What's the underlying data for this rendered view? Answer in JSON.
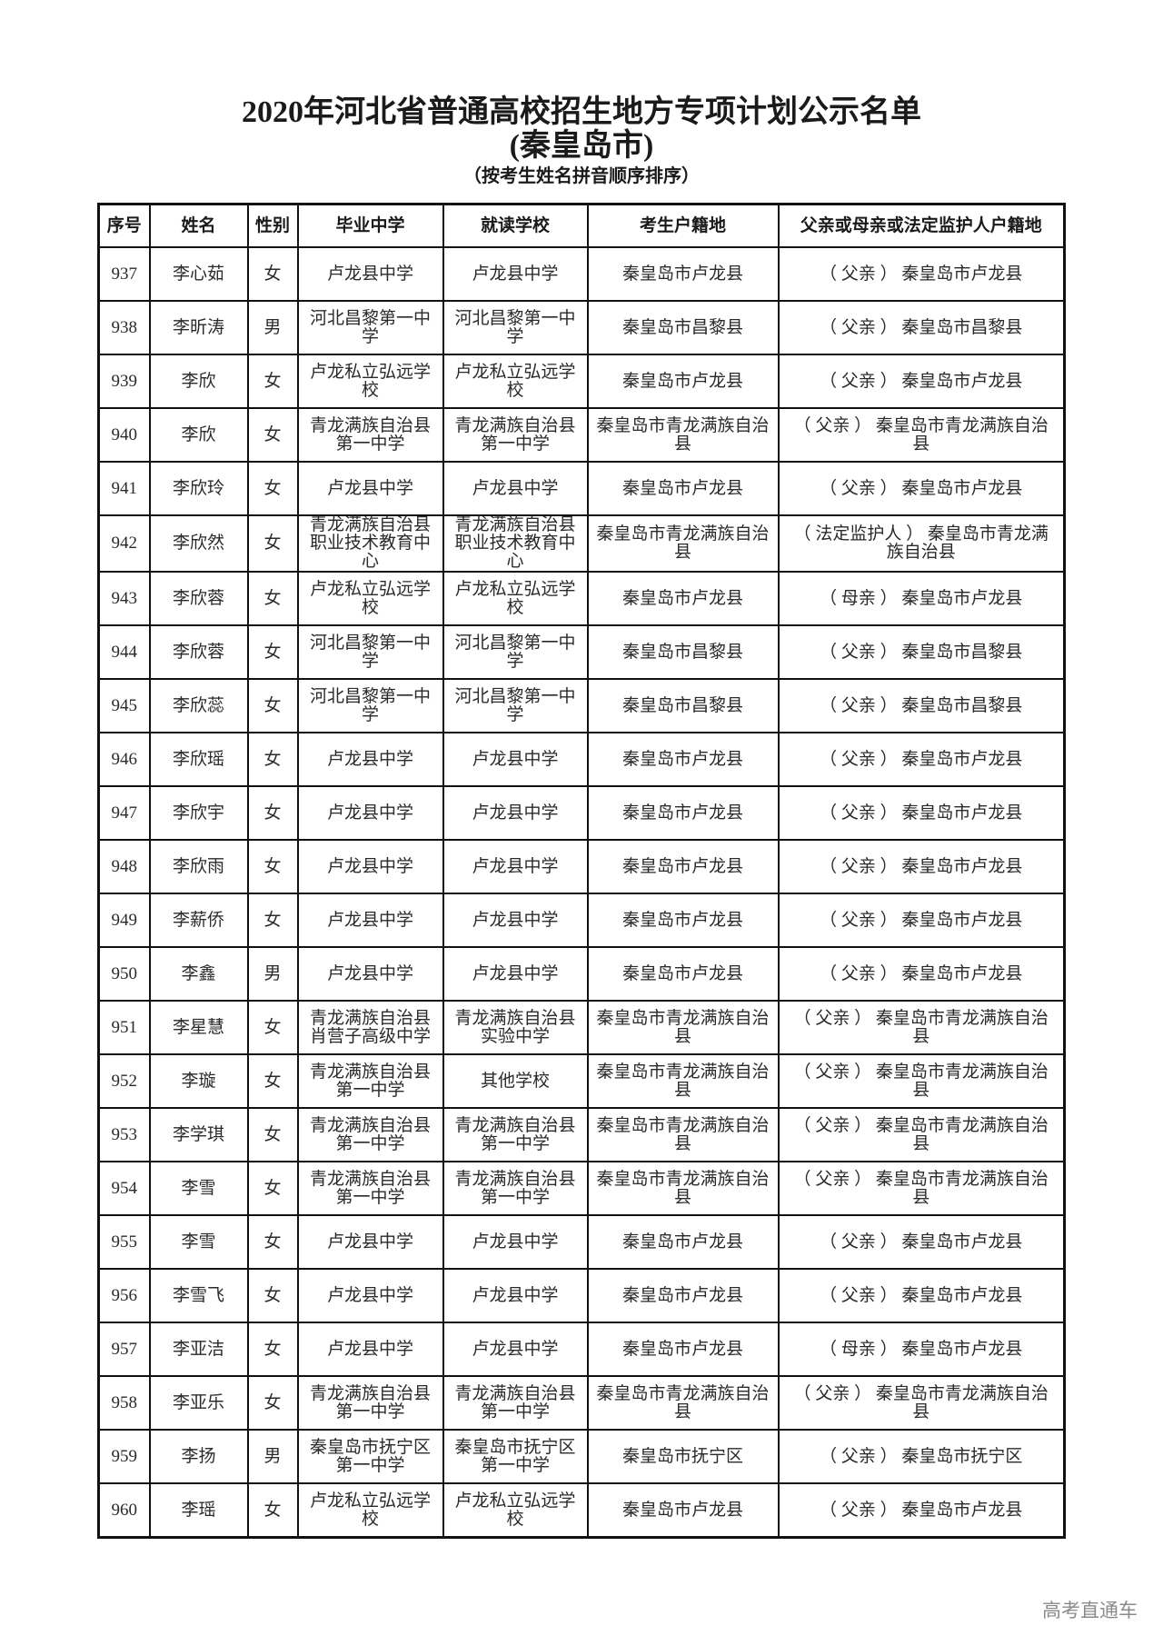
{
  "title": {
    "line1": "2020年河北省普通高校招生地方专项计划公示名单",
    "line2": "(秦皇岛市)",
    "line3": "（按考生姓名拼音顺序排序）"
  },
  "table": {
    "headers": [
      "序号",
      "姓名",
      "性别",
      "毕业中学",
      "就读学校",
      "考生户籍地",
      "父亲或母亲或法定监护人户籍地"
    ],
    "rows": [
      [
        "937",
        "李心茹",
        "女",
        "卢龙县中学",
        "卢龙县中学",
        "秦皇岛市卢龙县",
        "（ 父亲 ） 秦皇岛市卢龙县"
      ],
      [
        "938",
        "李昕涛",
        "男",
        "河北昌黎第一中学",
        "河北昌黎第一中学",
        "秦皇岛市昌黎县",
        "（ 父亲 ） 秦皇岛市昌黎县"
      ],
      [
        "939",
        "李欣",
        "女",
        "卢龙私立弘远学校",
        "卢龙私立弘远学校",
        "秦皇岛市卢龙县",
        "（ 父亲 ） 秦皇岛市卢龙县"
      ],
      [
        "940",
        "李欣",
        "女",
        "青龙满族自治县第一中学",
        "青龙满族自治县第一中学",
        "秦皇岛市青龙满族自治县",
        "（ 父亲 ） 秦皇岛市青龙满族自治县"
      ],
      [
        "941",
        "李欣玲",
        "女",
        "卢龙县中学",
        "卢龙县中学",
        "秦皇岛市卢龙县",
        "（ 父亲 ） 秦皇岛市卢龙县"
      ],
      [
        "942",
        "李欣然",
        "女",
        "青龙满族自治县职业技术教育中心",
        "青龙满族自治县职业技术教育中心",
        "秦皇岛市青龙满族自治县",
        "（ 法定监护人 ） 秦皇岛市青龙满族自治县"
      ],
      [
        "943",
        "李欣蓉",
        "女",
        "卢龙私立弘远学校",
        "卢龙私立弘远学校",
        "秦皇岛市卢龙县",
        "（ 母亲 ） 秦皇岛市卢龙县"
      ],
      [
        "944",
        "李欣蓉",
        "女",
        "河北昌黎第一中学",
        "河北昌黎第一中学",
        "秦皇岛市昌黎县",
        "（ 父亲 ） 秦皇岛市昌黎县"
      ],
      [
        "945",
        "李欣蕊",
        "女",
        "河北昌黎第一中学",
        "河北昌黎第一中学",
        "秦皇岛市昌黎县",
        "（ 父亲 ） 秦皇岛市昌黎县"
      ],
      [
        "946",
        "李欣瑶",
        "女",
        "卢龙县中学",
        "卢龙县中学",
        "秦皇岛市卢龙县",
        "（ 父亲 ） 秦皇岛市卢龙县"
      ],
      [
        "947",
        "李欣宇",
        "女",
        "卢龙县中学",
        "卢龙县中学",
        "秦皇岛市卢龙县",
        "（ 父亲 ） 秦皇岛市卢龙县"
      ],
      [
        "948",
        "李欣雨",
        "女",
        "卢龙县中学",
        "卢龙县中学",
        "秦皇岛市卢龙县",
        "（ 父亲 ） 秦皇岛市卢龙县"
      ],
      [
        "949",
        "李薪侨",
        "女",
        "卢龙县中学",
        "卢龙县中学",
        "秦皇岛市卢龙县",
        "（ 父亲 ） 秦皇岛市卢龙县"
      ],
      [
        "950",
        "李鑫",
        "男",
        "卢龙县中学",
        "卢龙县中学",
        "秦皇岛市卢龙县",
        "（ 父亲 ） 秦皇岛市卢龙县"
      ],
      [
        "951",
        "李星慧",
        "女",
        "青龙满族自治县肖营子高级中学",
        "青龙满族自治县实验中学",
        "秦皇岛市青龙满族自治县",
        "（ 父亲 ） 秦皇岛市青龙满族自治县"
      ],
      [
        "952",
        "李璇",
        "女",
        "青龙满族自治县第一中学",
        "其他学校",
        "秦皇岛市青龙满族自治县",
        "（ 父亲 ） 秦皇岛市青龙满族自治县"
      ],
      [
        "953",
        "李学琪",
        "女",
        "青龙满族自治县第一中学",
        "青龙满族自治县第一中学",
        "秦皇岛市青龙满族自治县",
        "（ 父亲 ） 秦皇岛市青龙满族自治县"
      ],
      [
        "954",
        "李雪",
        "女",
        "青龙满族自治县第一中学",
        "青龙满族自治县第一中学",
        "秦皇岛市青龙满族自治县",
        "（ 父亲 ） 秦皇岛市青龙满族自治县"
      ],
      [
        "955",
        "李雪",
        "女",
        "卢龙县中学",
        "卢龙县中学",
        "秦皇岛市卢龙县",
        "（ 父亲 ） 秦皇岛市卢龙县"
      ],
      [
        "956",
        "李雪飞",
        "女",
        "卢龙县中学",
        "卢龙县中学",
        "秦皇岛市卢龙县",
        "（ 父亲 ） 秦皇岛市卢龙县"
      ],
      [
        "957",
        "李亚洁",
        "女",
        "卢龙县中学",
        "卢龙县中学",
        "秦皇岛市卢龙县",
        "（ 母亲 ） 秦皇岛市卢龙县"
      ],
      [
        "958",
        "李亚乐",
        "女",
        "青龙满族自治县第一中学",
        "青龙满族自治县第一中学",
        "秦皇岛市青龙满族自治县",
        "（ 父亲 ） 秦皇岛市青龙满族自治县"
      ],
      [
        "959",
        "李扬",
        "男",
        "秦皇岛市抚宁区第一中学",
        "秦皇岛市抚宁区第一中学",
        "秦皇岛市抚宁区",
        "（ 父亲 ） 秦皇岛市抚宁区"
      ],
      [
        "960",
        "李瑶",
        "女",
        "卢龙私立弘远学校",
        "卢龙私立弘远学校",
        "秦皇岛市卢龙县",
        "（ 父亲 ） 秦皇岛市卢龙县"
      ]
    ]
  },
  "watermark": "高考直通车"
}
